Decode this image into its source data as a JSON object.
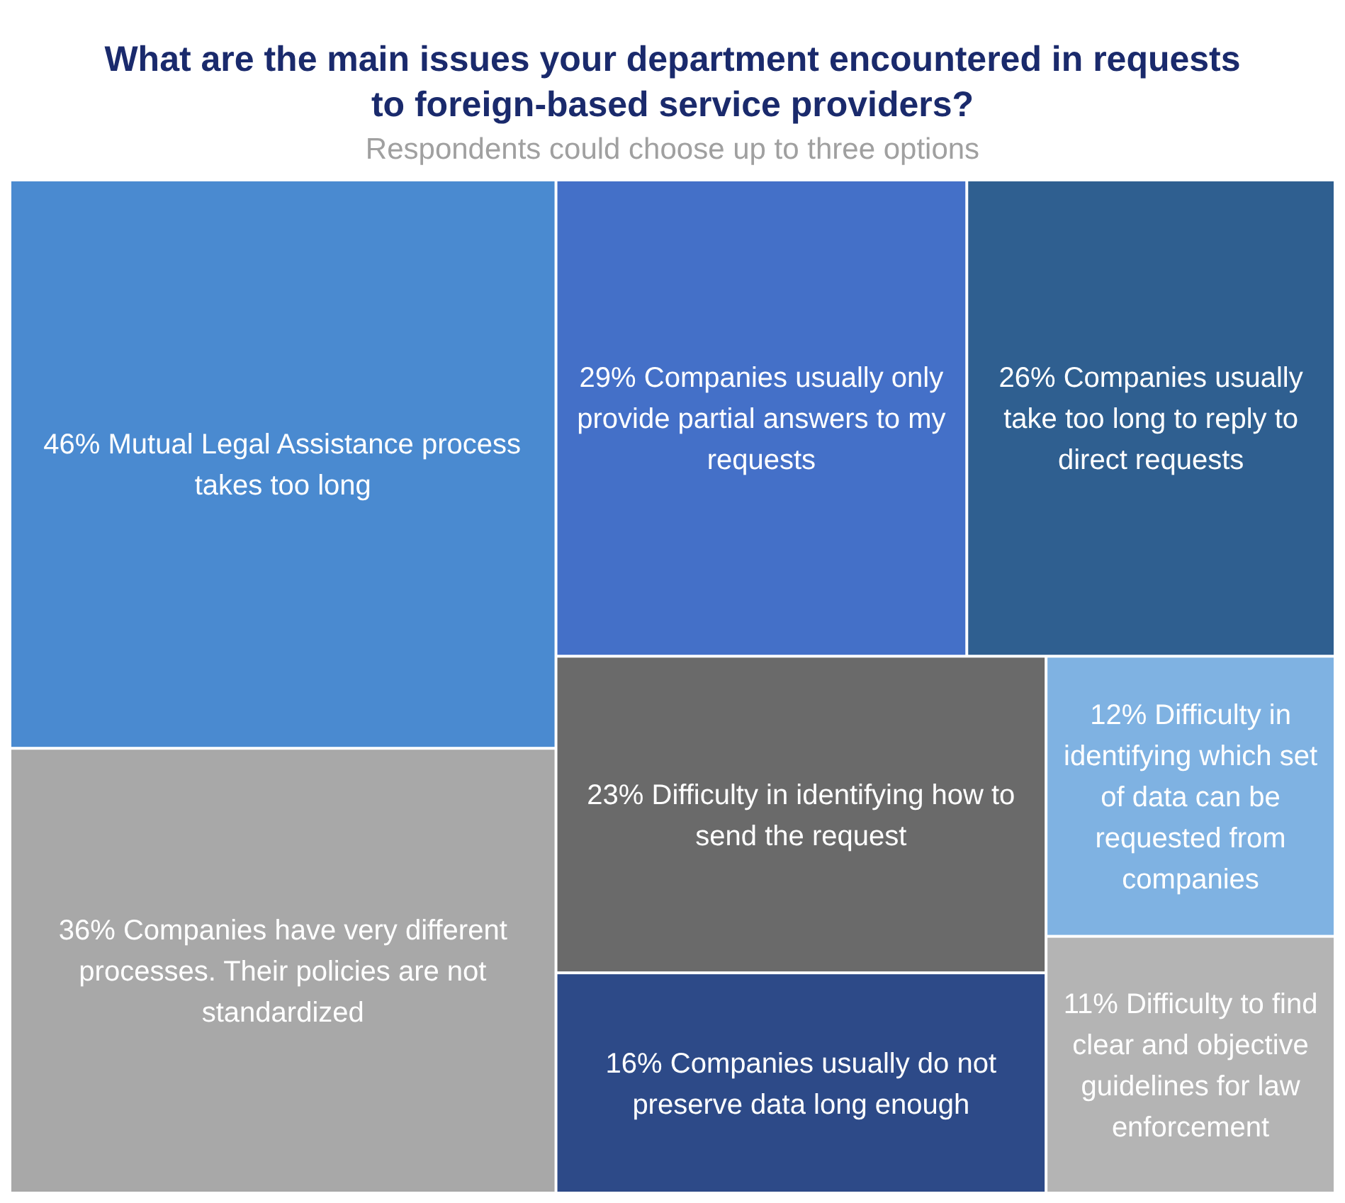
{
  "chart_data": {
    "type": "other",
    "title": "What are the main issues your department encountered in requests to foreign-based service providers?",
    "subtitle": "Respondents could choose up to three options",
    "categories": [
      "Mutual Legal Assistance process takes too long",
      "Companies have very different processes. Their policies are not standardized",
      "Companies usually only provide partial answers to my requests",
      "Companies usually take too long to reply to direct requests",
      "Difficulty in identifying how to send the request",
      "Companies usually do not preserve data long enough",
      "Difficulty in identifying which set of data can be requested from companies",
      "Difficulty to find clear and objective guidelines for law enforcement"
    ],
    "values": [
      46,
      36,
      29,
      26,
      23,
      16,
      12,
      11
    ],
    "value_labels": [
      "46%",
      "36%",
      "29%",
      "26%",
      "23%",
      "16%",
      "12%",
      "11%"
    ],
    "colors": [
      "#4a8ad0",
      "#a8a8a8",
      "#4470c8",
      "#2f5f90",
      "#6a6a6a",
      "#2d4a88",
      "#7fb2e2",
      "#b4b4b4"
    ]
  }
}
